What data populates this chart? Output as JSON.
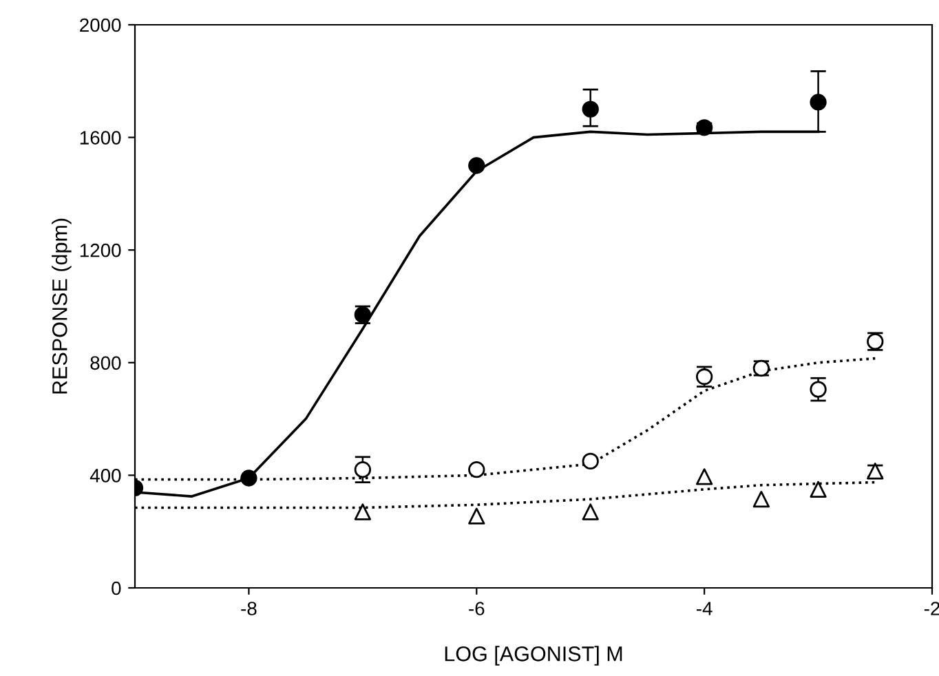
{
  "chart_data": {
    "type": "scatter",
    "xlabel": "LOG [AGONIST] M",
    "ylabel": "RESPONSE (dpm)",
    "xlim": [
      -9,
      -2
    ],
    "ylim": [
      0,
      2000
    ],
    "xticks": [
      -8,
      -6,
      -4,
      -2
    ],
    "yticks": [
      0,
      400,
      800,
      1200,
      1600,
      2000
    ],
    "grid": false,
    "legend": false,
    "series": [
      {
        "type": "line",
        "color": "#000000",
        "line_style": "solid",
        "marker": "none",
        "x": [
          -9,
          -8.5,
          -8,
          -7.5,
          -7,
          -6.5,
          -6,
          -5.5,
          -5,
          -4.5,
          -4,
          -3.5,
          -3
        ],
        "values": [
          340,
          325,
          390,
          600,
          920,
          1250,
          1480,
          1600,
          1620,
          1610,
          1615,
          1620,
          1620
        ]
      },
      {
        "type": "line",
        "color": "#000000",
        "line_style": "dotted",
        "marker": "none",
        "x": [
          -9,
          -8,
          -7,
          -6,
          -5,
          -4.5,
          -4,
          -3.5,
          -3,
          -2.5
        ],
        "values": [
          385,
          385,
          390,
          400,
          440,
          560,
          700,
          770,
          800,
          815
        ]
      },
      {
        "type": "line",
        "color": "#000000",
        "line_style": "dotted",
        "marker": "none",
        "x": [
          -9,
          -8,
          -7,
          -6,
          -5,
          -4,
          -3.5,
          -3,
          -2.5
        ],
        "values": [
          285,
          285,
          285,
          295,
          315,
          350,
          365,
          370,
          375
        ]
      },
      {
        "color": "#000000",
        "marker": "circle",
        "x": [
          -9,
          -8,
          -7,
          -6,
          -5,
          -4,
          -3
        ],
        "values": [
          355,
          390,
          970,
          1500,
          1700,
          1635,
          1725
        ],
        "errors": [
          null,
          null,
          30,
          null,
          [
            1640,
            1770
          ],
          15,
          [
            1620,
            1835
          ]
        ]
      },
      {
        "color": "#000000",
        "colors": [
          "#ffffff",
          "#ffffff",
          "#ffffff",
          "#ffffff",
          "#ffffff",
          "#ffffff",
          "#ffffff"
        ],
        "marker": "circle",
        "x": [
          -7,
          -6,
          -5,
          -4,
          -3.5,
          -3,
          -2.5
        ],
        "values": [
          420,
          420,
          450,
          750,
          780,
          705,
          875
        ],
        "errors": [
          45,
          null,
          null,
          35,
          25,
          40,
          30
        ]
      },
      {
        "color": "#000000",
        "colors": [
          "#ffffff",
          "#ffffff",
          "#ffffff",
          "#ffffff",
          "#ffffff",
          "#ffffff",
          "#ffffff"
        ],
        "marker": "triangle",
        "x": [
          -7,
          -6,
          -5,
          -4,
          -3.5,
          -3,
          -2.5
        ],
        "values": [
          270,
          255,
          270,
          395,
          315,
          350,
          415
        ],
        "errors": [
          null,
          null,
          null,
          null,
          null,
          null,
          20
        ]
      }
    ]
  }
}
